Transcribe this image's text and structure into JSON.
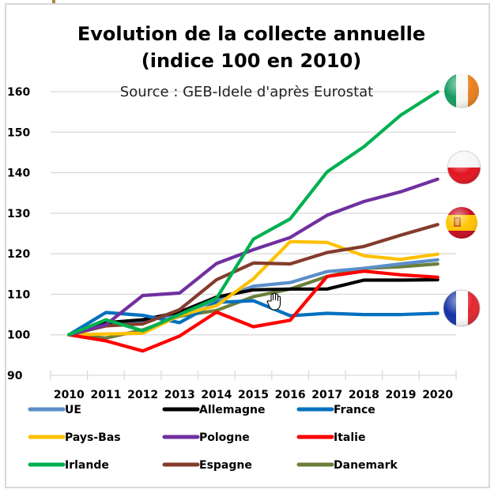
{
  "chart_data": {
    "type": "line",
    "title": "Evolution de la collecte annuelle",
    "subtitle": "(indice 100 en 2010)",
    "source": "Source : GEB-Idele d'après Eurostat",
    "xlabel": "",
    "ylabel": "",
    "categories": [
      "2010",
      "2011",
      "2012",
      "2013",
      "2014",
      "2015",
      "2016",
      "2017",
      "2018",
      "2019",
      "2020"
    ],
    "ylim": [
      90,
      160
    ],
    "yticks": [
      90,
      100,
      110,
      120,
      130,
      140,
      150,
      160
    ],
    "grid": true,
    "legend_position": "bottom",
    "series": [
      {
        "name": "UE",
        "color": "#5b8ec9",
        "values": [
          100,
          102.5,
          103.5,
          105.2,
          108.5,
          112.0,
          112.9,
          115.6,
          116.4,
          117.5,
          118.5
        ]
      },
      {
        "name": "Allemagne",
        "color": "#000000",
        "values": [
          100,
          103.0,
          103.7,
          105.6,
          109.3,
          111.1,
          111.3,
          111.3,
          113.5,
          113.5,
          113.6
        ]
      },
      {
        "name": "France",
        "color": "#0070c0",
        "values": [
          100,
          105.5,
          104.8,
          103.0,
          108.0,
          108.4,
          104.7,
          105.3,
          105.0,
          105.0,
          105.3
        ]
      },
      {
        "name": "Pays-Bas",
        "color": "#ffc000",
        "values": [
          100,
          100.2,
          100.4,
          104.8,
          107.2,
          113.8,
          123.0,
          122.8,
          119.5,
          118.6,
          119.9
        ]
      },
      {
        "name": "Pologne",
        "color": "#7030a0",
        "values": [
          100,
          102.5,
          109.7,
          110.3,
          117.6,
          121.0,
          124.0,
          129.5,
          132.9,
          135.3,
          138.4
        ]
      },
      {
        "name": "Italie",
        "color": "#ff0000",
        "values": [
          100,
          98.5,
          96.0,
          99.7,
          105.6,
          102.0,
          103.6,
          114.4,
          115.7,
          114.8,
          114.2
        ]
      },
      {
        "name": "Irlande",
        "color": "#00b050",
        "values": [
          100,
          103.7,
          101.0,
          105.0,
          109.0,
          123.6,
          128.6,
          140.2,
          146.4,
          154.2,
          160.0
        ]
      },
      {
        "name": "Espagne",
        "color": "#843c2c",
        "values": [
          100,
          102.2,
          102.7,
          106.2,
          113.6,
          117.7,
          117.5,
          120.3,
          121.8,
          124.6,
          127.2
        ]
      },
      {
        "name": "Danemark",
        "color": "#6b7e3a",
        "values": [
          100,
          99.2,
          101.2,
          104.6,
          106.0,
          109.4,
          111.3,
          114.4,
          116.4,
          116.8,
          117.5
        ]
      }
    ],
    "flags": [
      {
        "country": "Irlande",
        "flag": "ireland-flag",
        "at_value": 160
      },
      {
        "country": "Pologne",
        "flag": "poland-flag",
        "at_value": 141
      },
      {
        "country": "Espagne",
        "flag": "spain-flag",
        "at_value": 127.5
      },
      {
        "country": "France",
        "flag": "france-flag",
        "at_value": 106.5
      }
    ]
  }
}
